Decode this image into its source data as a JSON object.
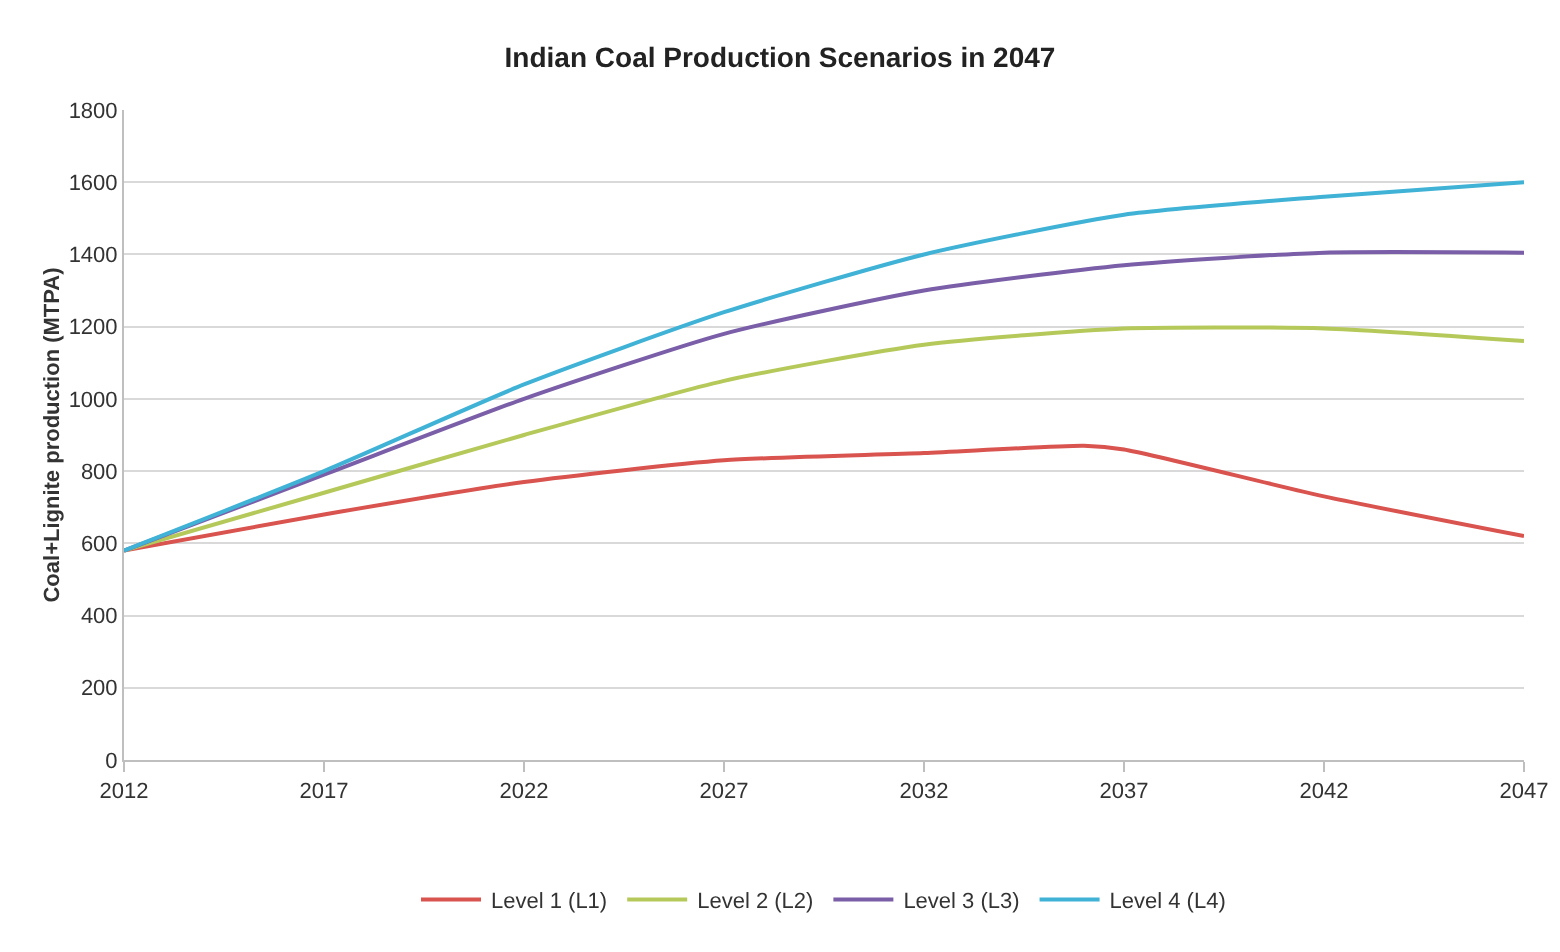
{
  "chart_data": {
    "type": "line",
    "title": "Indian Coal Production Scenarios in 2047",
    "ylabel": "Coal+Lignite production (MTPA)",
    "x": [
      2012,
      2017,
      2022,
      2027,
      2032,
      2037,
      2042,
      2047
    ],
    "series": [
      {
        "name": "Level 1 (L1)",
        "color": "#d9534f",
        "x": [
          2012,
          2017,
          2022,
          2027,
          2032,
          2036,
          2037,
          2042,
          2047
        ],
        "values": [
          580,
          680,
          770,
          830,
          850,
          870,
          860,
          730,
          620
        ]
      },
      {
        "name": "Level 2 (L2)",
        "color": "#b5c95a",
        "values": [
          580,
          740,
          900,
          1050,
          1150,
          1195,
          1195,
          1160
        ]
      },
      {
        "name": "Level 3 (L3)",
        "color": "#7a5ea8",
        "values": [
          580,
          790,
          1000,
          1180,
          1300,
          1370,
          1405,
          1405
        ]
      },
      {
        "name": "Level 4 (L4)",
        "color": "#3fb2d6",
        "values": [
          580,
          800,
          1040,
          1240,
          1400,
          1510,
          1560,
          1600
        ]
      }
    ],
    "xlim": [
      2012,
      2047
    ],
    "xticks": [
      2012,
      2017,
      2022,
      2027,
      2032,
      2037,
      2042,
      2047
    ],
    "ylim": [
      0,
      1800
    ],
    "yticks": [
      0,
      200,
      400,
      600,
      800,
      1000,
      1200,
      1400,
      1600,
      1800
    ],
    "grid": "y",
    "legend": "bottom",
    "marker": "none",
    "line_style": "solid"
  }
}
